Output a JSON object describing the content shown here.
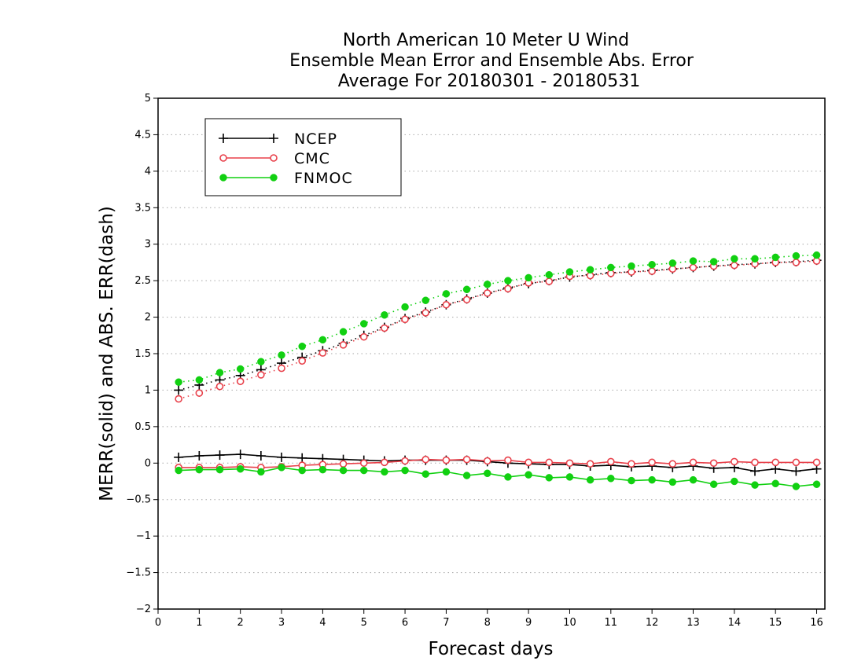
{
  "chart_data": {
    "type": "line",
    "title": [
      "North American 10 Meter U Wind",
      "Ensemble Mean Error and Ensemble Abs. Error",
      "Average For 20180301 - 20180531"
    ],
    "xlabel": "Forecast days",
    "ylabel": "MERR(solid) and ABS. ERR(dash)",
    "xlim": [
      0,
      16.2
    ],
    "ylim": [
      -2,
      5
    ],
    "xticks": [
      "0",
      "1",
      "2",
      "3",
      "4",
      "5",
      "6",
      "7",
      "8",
      "9",
      "10",
      "11",
      "12",
      "13",
      "14",
      "15",
      "16"
    ],
    "yticks": [
      "−2",
      "−1.5",
      "−1",
      "−0.5",
      "0",
      "0.5",
      "1",
      "1.5",
      "2",
      "2.5",
      "3",
      "3.5",
      "4",
      "4.5",
      "5"
    ],
    "grid": "horizontal dotted",
    "legend_position": "top-left",
    "x": [
      0.5,
      1,
      1.5,
      2,
      2.5,
      3,
      3.5,
      4,
      4.5,
      5,
      5.5,
      6,
      6.5,
      7,
      7.5,
      8,
      8.5,
      9,
      9.5,
      10,
      10.5,
      11,
      11.5,
      12,
      12.5,
      13,
      13.5,
      14,
      14.5,
      15,
      15.5,
      16
    ],
    "series": [
      {
        "name": "NCEP",
        "color": "#000000",
        "marker": "plus",
        "merr": [
          0.08,
          0.1,
          0.11,
          0.12,
          0.1,
          0.08,
          0.07,
          0.06,
          0.05,
          0.04,
          0.03,
          0.04,
          0.04,
          0.04,
          0.04,
          0.02,
          0.0,
          -0.01,
          -0.02,
          -0.02,
          -0.04,
          -0.03,
          -0.05,
          -0.04,
          -0.06,
          -0.04,
          -0.07,
          -0.06,
          -0.11,
          -0.08,
          -0.11,
          -0.08
        ],
        "abs_err": [
          1.0,
          1.07,
          1.14,
          1.2,
          1.28,
          1.37,
          1.45,
          1.54,
          1.64,
          1.75,
          1.86,
          1.98,
          2.07,
          2.17,
          2.25,
          2.33,
          2.4,
          2.46,
          2.5,
          2.55,
          2.58,
          2.61,
          2.62,
          2.64,
          2.66,
          2.68,
          2.7,
          2.72,
          2.73,
          2.75,
          2.76,
          2.78
        ]
      },
      {
        "name": "CMC",
        "color": "#e8404a",
        "marker": "open-circle",
        "merr": [
          -0.06,
          -0.06,
          -0.06,
          -0.05,
          -0.06,
          -0.05,
          -0.03,
          -0.02,
          -0.01,
          0.0,
          0.01,
          0.03,
          0.05,
          0.04,
          0.05,
          0.03,
          0.04,
          0.01,
          0.01,
          0.0,
          -0.01,
          0.02,
          -0.01,
          0.01,
          -0.01,
          0.01,
          0.0,
          0.02,
          0.01,
          0.01,
          0.01,
          0.01
        ],
        "abs_err": [
          0.88,
          0.96,
          1.05,
          1.12,
          1.21,
          1.3,
          1.4,
          1.51,
          1.62,
          1.73,
          1.85,
          1.97,
          2.06,
          2.17,
          2.24,
          2.33,
          2.39,
          2.47,
          2.49,
          2.56,
          2.57,
          2.6,
          2.62,
          2.63,
          2.66,
          2.68,
          2.7,
          2.71,
          2.73,
          2.75,
          2.75,
          2.77
        ]
      },
      {
        "name": "FNMOC",
        "color": "#11d011",
        "marker": "filled-circle",
        "merr": [
          -0.1,
          -0.09,
          -0.09,
          -0.08,
          -0.12,
          -0.06,
          -0.1,
          -0.09,
          -0.1,
          -0.1,
          -0.12,
          -0.1,
          -0.15,
          -0.12,
          -0.17,
          -0.14,
          -0.19,
          -0.16,
          -0.2,
          -0.19,
          -0.23,
          -0.21,
          -0.24,
          -0.23,
          -0.26,
          -0.23,
          -0.29,
          -0.25,
          -0.3,
          -0.28,
          -0.32,
          -0.29
        ],
        "abs_err": [
          1.11,
          1.14,
          1.24,
          1.29,
          1.39,
          1.48,
          1.6,
          1.69,
          1.8,
          1.91,
          2.03,
          2.14,
          2.23,
          2.32,
          2.38,
          2.45,
          2.5,
          2.54,
          2.58,
          2.62,
          2.65,
          2.68,
          2.7,
          2.72,
          2.74,
          2.77,
          2.76,
          2.8,
          2.8,
          2.82,
          2.84,
          2.85
        ]
      }
    ]
  }
}
